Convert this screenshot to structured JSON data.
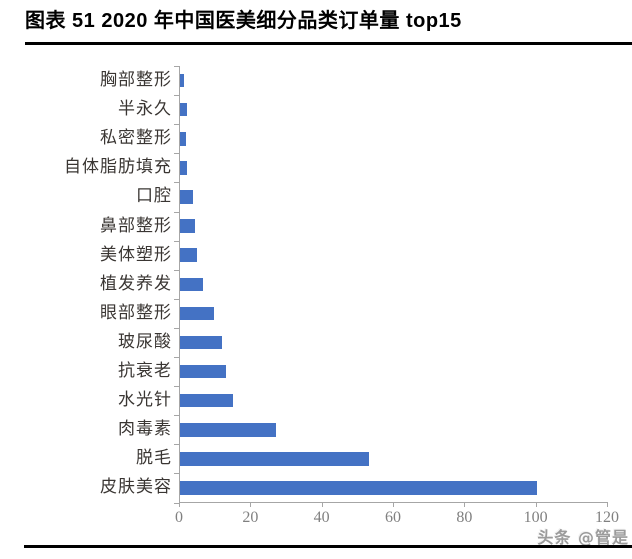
{
  "header": {
    "title": "图表 51 2020 年中国医美细分品类订单量 top15"
  },
  "watermark": {
    "text": "头条 @管是"
  },
  "chart_data": {
    "type": "bar",
    "orientation": "horizontal",
    "title": "图表 51 2020 年中国医美细分品类订单量 top15",
    "categories_top_to_bottom": [
      "胸部整形",
      "半永久",
      "私密整形",
      "自体脂肪填充",
      "口腔",
      "鼻部整形",
      "美体塑形",
      "植发养发",
      "眼部整形",
      "玻尿酸",
      "抗衰老",
      "水光针",
      "肉毒素",
      "脱毛",
      "皮肤美容"
    ],
    "values": [
      1.2,
      1.9,
      1.8,
      2.0,
      3.7,
      4.3,
      4.7,
      6.4,
      9.6,
      11.8,
      13.0,
      14.8,
      26.9,
      53,
      100
    ],
    "xlim": [
      0,
      120
    ],
    "x_ticks": [
      0,
      20,
      40,
      60,
      80,
      100,
      120
    ],
    "grid": false,
    "legend": false,
    "bar_color": "#4472C4",
    "axis_color": "#A6A6A6",
    "tick_label_color": "#808080",
    "category_label_color": "#3A3633"
  }
}
